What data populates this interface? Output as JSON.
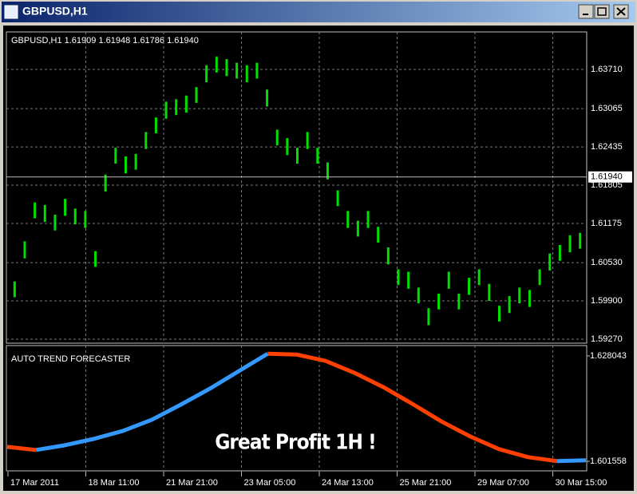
{
  "window": {
    "title": "GBPUSD,H1"
  },
  "chart_data": [
    {
      "type": "ohlc",
      "title": "GBPUSD,H1  1.61909 1.61948 1.61786 1.61940",
      "color": "#00e000",
      "high": [
        1.6022,
        1.6088,
        1.6152,
        1.6148,
        1.6132,
        1.6158,
        1.6142,
        1.6138,
        1.6072,
        1.6198,
        1.6242,
        1.6228,
        1.6232,
        1.6268,
        1.6292,
        1.6318,
        1.6322,
        1.6328,
        1.6342,
        1.6378,
        1.6392,
        1.6388,
        1.6382,
        1.6378,
        1.6382,
        1.6338,
        1.6272,
        1.6258,
        1.6242,
        1.6268,
        1.6242,
        1.6218,
        1.6172,
        1.6138,
        1.6122,
        1.6138,
        1.6112,
        1.6078,
        1.6042,
        1.6038,
        1.6012,
        1.5978,
        1.6002,
        1.6038,
        1.6002,
        1.6028,
        1.6042,
        1.6018,
        1.5982,
        1.5998,
        1.6012,
        1.6008,
        1.6042,
        1.6068,
        1.6082,
        1.6098,
        1.6102
      ],
      "low": [
        1.5996,
        1.606,
        1.6126,
        1.612,
        1.6106,
        1.613,
        1.6116,
        1.611,
        1.6046,
        1.617,
        1.6216,
        1.62,
        1.6206,
        1.624,
        1.6266,
        1.629,
        1.6296,
        1.63,
        1.6316,
        1.635,
        1.6366,
        1.636,
        1.6356,
        1.635,
        1.6356,
        1.631,
        1.6246,
        1.623,
        1.6216,
        1.624,
        1.6216,
        1.619,
        1.6146,
        1.611,
        1.6096,
        1.611,
        1.6086,
        1.605,
        1.6016,
        1.601,
        1.5986,
        1.595,
        1.5976,
        1.601,
        1.5976,
        1.6,
        1.6016,
        1.599,
        1.5956,
        1.597,
        1.5986,
        1.598,
        1.6016,
        1.604,
        1.6056,
        1.607,
        1.6076
      ],
      "last_price": {
        "value": 1.6194,
        "label": "1.61940"
      },
      "ylim": [
        1.59204,
        1.64328
      ],
      "yticks": [
        {
          "value": 1.6371,
          "label": "1.63710"
        },
        1.63065,
        1.62435,
        1.61805,
        1.61175,
        {
          "value": 1.6053,
          "label": "1.60530"
        },
        {
          "value": 1.599,
          "label": "1.59900"
        },
        {
          "value": 1.5927,
          "label": "1.59270"
        }
      ],
      "grid": true,
      "x_labels": [
        "17 Mar 2011",
        "18 Mar 11:00",
        "21 Mar 21:00",
        "23 Mar 05:00",
        "24 Mar 13:00",
        "25 Mar 21:00",
        "29 Mar 07:00",
        "30 Mar 15:00"
      ]
    },
    {
      "type": "line",
      "title": "AUTO TREND FORECASTER",
      "annotation": "Great Profit 1H !",
      "series": [
        {
          "color": "#ff4000",
          "values": [
            1.6052,
            1.6044,
            null,
            null,
            null,
            null,
            null,
            null,
            null,
            1.6286,
            1.6284,
            1.6268,
            1.6238,
            1.6202,
            1.616,
            1.6116,
            1.6078,
            1.6046,
            1.6026,
            1.6016,
            null
          ]
        },
        {
          "color": "#3399ff",
          "values": [
            null,
            1.6044,
            1.6056,
            1.6072,
            1.6092,
            1.612,
            1.6158,
            1.6198,
            1.6242,
            1.6286,
            null,
            null,
            null,
            null,
            null,
            null,
            null,
            null,
            null,
            1.6016,
            1.6018
          ]
        }
      ],
      "ylim": [
        1.59915,
        1.63065
      ],
      "yticks": [
        1.628043,
        1.601558
      ],
      "grid": true
    }
  ]
}
